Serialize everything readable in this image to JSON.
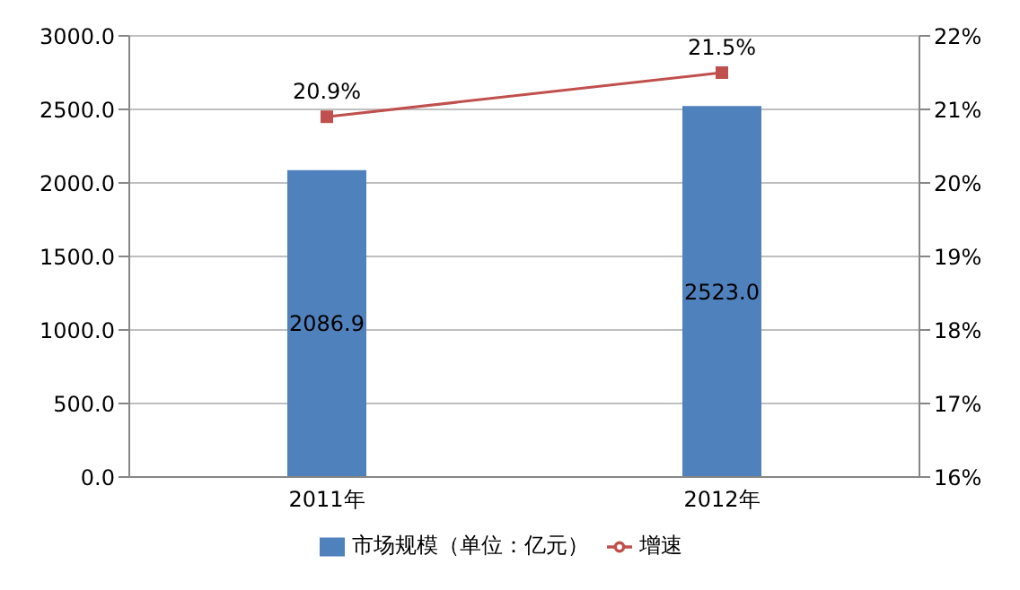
{
  "chart_data": {
    "type": "bar",
    "categories": [
      "2011年",
      "2012年"
    ],
    "series": [
      {
        "name": "市场规模（单位：亿元）",
        "color": "#4f81bd",
        "values": [
          2086.9,
          2523.0
        ],
        "value_labels": [
          "2086.9",
          "2523.0"
        ]
      },
      {
        "name": "增速",
        "type": "line",
        "axis": "y2",
        "color": "#c0504d",
        "values": [
          20.9,
          21.5
        ],
        "value_labels": [
          "20.9%",
          "21.5%"
        ],
        "marker": "square"
      }
    ],
    "ylim": [
      0,
      3000
    ],
    "yticks": [
      {
        "value": 0,
        "label": "0.0"
      },
      {
        "value": 500,
        "label": "500.0"
      },
      {
        "value": 1000,
        "label": "1000.0"
      },
      {
        "value": 1500,
        "label": "1500.0"
      },
      {
        "value": 2000,
        "label": "2000.0"
      },
      {
        "value": 2500,
        "label": "2500.0"
      },
      {
        "value": 3000,
        "label": "3000.0"
      }
    ],
    "y2lim": [
      16,
      22
    ],
    "y2ticks": [
      {
        "value": 16,
        "label": "16%"
      },
      {
        "value": 17,
        "label": "17%"
      },
      {
        "value": 18,
        "label": "18%"
      },
      {
        "value": 19,
        "label": "19%"
      },
      {
        "value": 20,
        "label": "20%"
      },
      {
        "value": 21,
        "label": "21%"
      },
      {
        "value": 22,
        "label": "22%"
      }
    ],
    "grid": "y",
    "legend": "bottom"
  }
}
